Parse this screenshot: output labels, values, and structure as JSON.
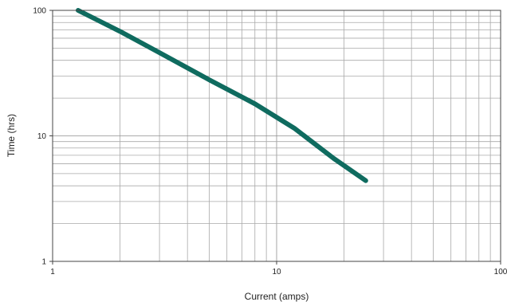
{
  "chart_data": {
    "type": "line",
    "title": "",
    "xlabel": "Current (amps)",
    "ylabel": "Time (hrs)",
    "xscale": "log",
    "yscale": "log",
    "xlim": [
      1,
      100
    ],
    "ylim": [
      1,
      100
    ],
    "grid": true,
    "x_ticks": [
      "1",
      "10",
      "100"
    ],
    "y_ticks": [
      "1",
      "10",
      "100"
    ],
    "series": [
      {
        "color": "#0f6b5f",
        "x": [
          1.3,
          2,
          3,
          5,
          8,
          12,
          18,
          25
        ],
        "y": [
          100,
          68,
          46,
          28,
          18,
          11.5,
          6.6,
          4.4
        ]
      }
    ]
  }
}
